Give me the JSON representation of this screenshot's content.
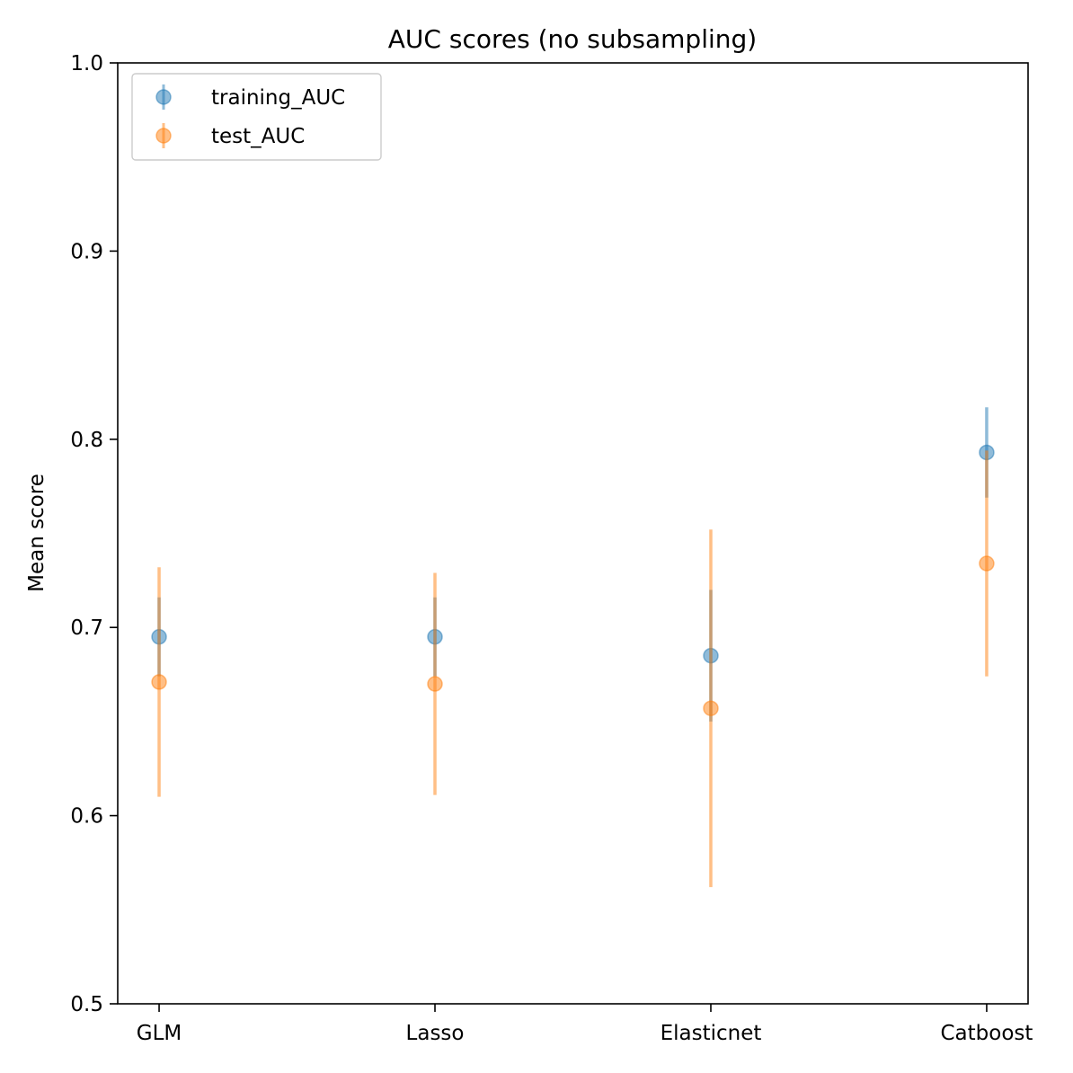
{
  "chart_data": {
    "type": "scatter",
    "title": "AUC scores (no subsampling)",
    "xlabel": "",
    "ylabel": "Mean score",
    "categories": [
      "GLM",
      "Lasso",
      "Elasticnet",
      "Catboost"
    ],
    "ylim": [
      0.5,
      1.0
    ],
    "yticks": [
      "0.5",
      "0.6",
      "0.7",
      "0.8",
      "0.9",
      "1.0"
    ],
    "grid": false,
    "legend_position": "top-left",
    "series": [
      {
        "name": "training_AUC",
        "color": "#1f77b4",
        "values": [
          0.695,
          0.695,
          0.685,
          0.793
        ],
        "errors": [
          0.021,
          0.021,
          0.035,
          0.024
        ]
      },
      {
        "name": "test_AUC",
        "color": "#ff7f0e",
        "values": [
          0.671,
          0.67,
          0.657,
          0.734
        ],
        "errors": [
          0.061,
          0.059,
          0.095,
          0.06
        ]
      }
    ]
  }
}
